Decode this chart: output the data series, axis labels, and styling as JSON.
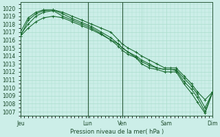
{
  "bg_color": "#cceee8",
  "grid_color": "#aaddcc",
  "line_color": "#1a6b30",
  "vline_color": "#2a5a3a",
  "ylim": [
    1006.5,
    1020.8
  ],
  "yticks": [
    1007,
    1008,
    1009,
    1010,
    1011,
    1012,
    1013,
    1014,
    1015,
    1016,
    1017,
    1018,
    1019,
    1020
  ],
  "xlabel": "Pression niveau de la mer( hPa )",
  "xtick_positions": [
    0,
    0.35,
    0.53,
    0.63,
    0.76,
    0.88,
    1.0
  ],
  "xtick_labels": [
    "Jeu",
    "Lun",
    "Ven",
    "",
    "Sam",
    "",
    "Dim"
  ],
  "vlines": [
    0.35,
    0.53
  ],
  "xlim": [
    0,
    1.0
  ],
  "lines": [
    {
      "x": [
        0.0,
        0.04,
        0.08,
        0.12,
        0.17,
        0.22,
        0.27,
        0.32,
        0.37,
        0.42,
        0.47,
        0.51,
        0.53,
        0.56,
        0.6,
        0.63,
        0.67,
        0.71,
        0.75,
        0.78,
        0.81,
        0.85,
        0.89,
        0.92,
        0.96,
        1.0
      ],
      "y": [
        1016.5,
        1018.5,
        1019.3,
        1019.7,
        1019.8,
        1019.5,
        1019.0,
        1018.5,
        1018.0,
        1017.5,
        1017.0,
        1016.0,
        1015.5,
        1015.0,
        1014.5,
        1014.0,
        1013.5,
        1013.0,
        1012.5,
        1012.5,
        1012.5,
        1011.5,
        1010.5,
        1009.5,
        1008.5,
        1009.5
      ]
    },
    {
      "x": [
        0.0,
        0.04,
        0.08,
        0.12,
        0.17,
        0.22,
        0.27,
        0.32,
        0.37,
        0.42,
        0.47,
        0.51,
        0.53,
        0.56,
        0.6,
        0.63,
        0.67,
        0.71,
        0.75,
        0.78,
        0.81,
        0.85,
        0.89,
        0.92,
        0.96,
        1.0
      ],
      "y": [
        1017.0,
        1018.8,
        1019.5,
        1019.8,
        1019.8,
        1019.3,
        1018.7,
        1018.2,
        1017.7,
        1017.0,
        1016.3,
        1015.5,
        1015.0,
        1014.5,
        1014.0,
        1013.5,
        1013.0,
        1012.5,
        1012.3,
        1012.3,
        1012.3,
        1011.2,
        1010.2,
        1009.2,
        1007.5,
        1009.5
      ]
    },
    {
      "x": [
        0.0,
        0.04,
        0.08,
        0.12,
        0.17,
        0.22,
        0.27,
        0.32,
        0.37,
        0.42,
        0.47,
        0.51,
        0.53,
        0.56,
        0.6,
        0.63,
        0.67,
        0.71,
        0.75,
        0.78,
        0.81,
        0.85,
        0.89,
        0.92,
        0.96,
        1.0
      ],
      "y": [
        1016.7,
        1018.0,
        1019.0,
        1019.5,
        1019.7,
        1019.0,
        1018.5,
        1018.0,
        1017.5,
        1016.8,
        1016.0,
        1015.2,
        1014.7,
        1014.2,
        1013.8,
        1013.3,
        1012.8,
        1012.5,
        1012.3,
        1012.3,
        1012.2,
        1010.8,
        1009.8,
        1008.8,
        1007.0,
        1009.5
      ]
    },
    {
      "x": [
        0.0,
        0.04,
        0.08,
        0.12,
        0.17,
        0.22,
        0.27,
        0.32,
        0.37,
        0.42,
        0.47,
        0.51,
        0.53,
        0.56,
        0.6,
        0.63,
        0.67,
        0.71,
        0.75,
        0.78,
        0.81,
        0.85,
        0.89,
        0.92,
        0.96,
        1.0
      ],
      "y": [
        1016.5,
        1017.5,
        1018.3,
        1018.8,
        1019.0,
        1018.8,
        1018.3,
        1017.8,
        1017.3,
        1016.7,
        1016.0,
        1015.5,
        1015.0,
        1014.5,
        1013.8,
        1013.0,
        1012.5,
        1012.3,
        1012.0,
        1012.0,
        1012.0,
        1010.5,
        1009.3,
        1008.2,
        1006.8,
        1009.5
      ]
    }
  ],
  "marker_size": 2.5,
  "line_width": 0.8,
  "ytick_fontsize": 5.5,
  "xtick_fontsize": 5.5,
  "xlabel_fontsize": 6.0
}
